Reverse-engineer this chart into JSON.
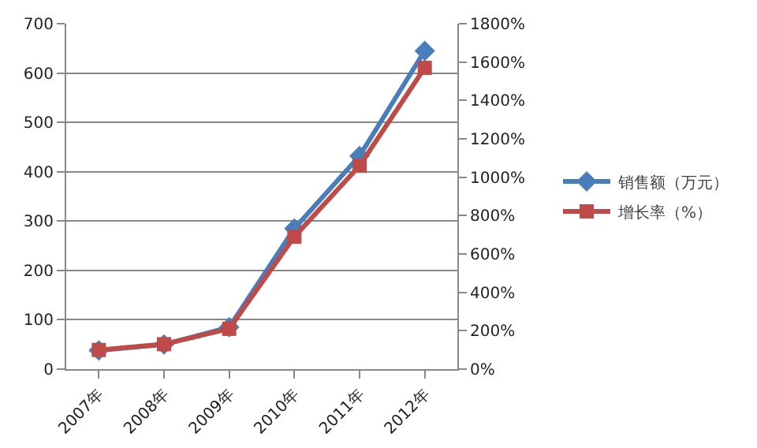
{
  "chart_data": {
    "type": "line",
    "categories": [
      "2007年",
      "2008年",
      "2009年",
      "2010年",
      "2011年",
      "2012年"
    ],
    "series": [
      {
        "name": "销售额（万元）",
        "color": "#4a7ebb",
        "marker": "diamond",
        "values": [
          38,
          50,
          85,
          285,
          432,
          645
        ]
      },
      {
        "name": "增长率（%）",
        "color": "#be4b48",
        "marker": "square",
        "axis": "y2",
        "values": [
          100,
          130,
          210,
          690,
          1060,
          1570
        ]
      }
    ],
    "ylim": [
      0,
      700
    ],
    "yticks": [
      0,
      100,
      200,
      300,
      400,
      500,
      600,
      700
    ],
    "y2lim": [
      0,
      1800
    ],
    "y2ticks": [
      {
        "value": 0,
        "label": "0%"
      },
      {
        "value": 200,
        "label": "200%"
      },
      {
        "value": 400,
        "label": "400%"
      },
      {
        "value": 600,
        "label": "600%"
      },
      {
        "value": 800,
        "label": "800%"
      },
      {
        "value": 1000,
        "label": "1000%"
      },
      {
        "value": 1200,
        "label": "1200%"
      },
      {
        "value": 1400,
        "label": "1400%"
      },
      {
        "value": 1600,
        "label": "1600%"
      },
      {
        "value": 1800,
        "label": "1800%"
      }
    ],
    "grid": "y",
    "legend": "right",
    "line_style": "solid"
  }
}
